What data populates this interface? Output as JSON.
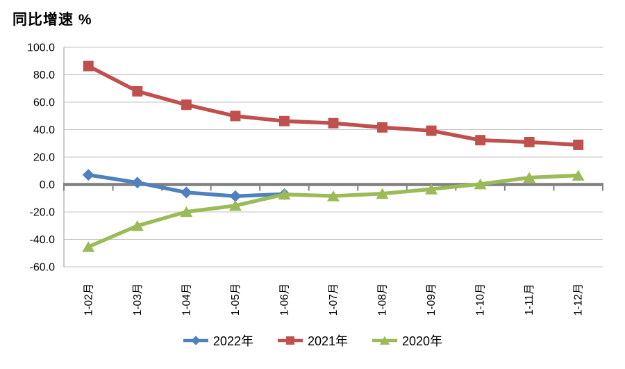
{
  "title": "同比增速 %",
  "chart_data": {
    "type": "line",
    "categories": [
      "1-02月",
      "1-03月",
      "1-04月",
      "1-05月",
      "1-06月",
      "1-07月",
      "1-08月",
      "1-09月",
      "1-10月",
      "1-11月",
      "1-12月"
    ],
    "series": [
      {
        "name": "2022年",
        "color": "#4F81BD",
        "marker": "diamond",
        "values": [
          7.0,
          1.4,
          -5.8,
          -8.5,
          -7.0,
          null,
          null,
          null,
          null,
          null,
          null
        ]
      },
      {
        "name": "2021年",
        "color": "#C0504D",
        "marker": "square",
        "values": [
          86.3,
          67.9,
          58.1,
          49.9,
          46.2,
          44.7,
          41.6,
          39.2,
          32.3,
          30.9,
          28.9
        ]
      },
      {
        "name": "2020年",
        "color": "#9BBB59",
        "marker": "triangle",
        "values": [
          -45.4,
          -30.1,
          -19.9,
          -15.4,
          -7.2,
          -8.4,
          -6.7,
          -3.4,
          0.3,
          5.0,
          6.6
        ]
      }
    ],
    "title": "同比增速 %",
    "xlabel": "",
    "ylabel": "同比增速%",
    "ylim": [
      -60,
      100
    ],
    "yticks": [
      100,
      80,
      60,
      40,
      20,
      0,
      -20,
      -40,
      -60
    ],
    "ytick_decimals": 1,
    "grid": true,
    "x_labels_rotated_90": true,
    "legend_position": "bottom",
    "colors": {
      "gridline": "#C3C3C3",
      "zero_axis": "#808080",
      "left_axis": "#A6A6A6",
      "text": "#000000",
      "background": "#FFFFFF"
    }
  }
}
